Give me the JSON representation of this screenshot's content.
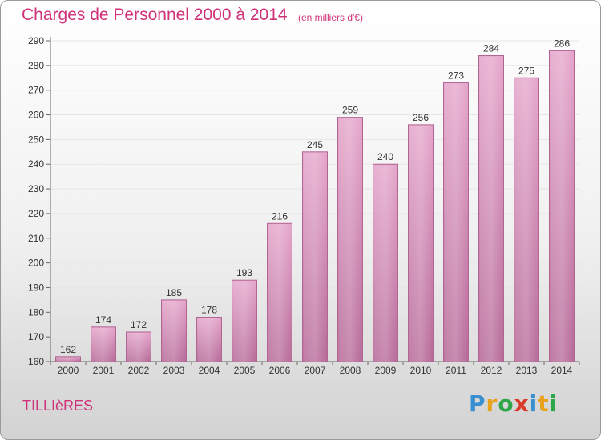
{
  "header": {
    "title": "Charges de Personnel 2000 à 2014",
    "subtitle": "(en milliers d'€)"
  },
  "footer": {
    "commune": "TILLIèRES",
    "logo": "Proxiti",
    "logo_colors": [
      "#3a8fd0",
      "#e8a21b",
      "#2ea64a",
      "#d93a2a",
      "#3a8fd0",
      "#e8a21b",
      "#2ea64a"
    ]
  },
  "chart_data": {
    "type": "bar",
    "title": "Charges de Personnel 2000 à 2014",
    "subtitle": "(en milliers d'€)",
    "categories": [
      "2000",
      "2001",
      "2002",
      "2003",
      "2004",
      "2005",
      "2006",
      "2007",
      "2008",
      "2009",
      "2010",
      "2011",
      "2012",
      "2013",
      "2014"
    ],
    "values": [
      162,
      174,
      172,
      185,
      178,
      193,
      216,
      245,
      259,
      240,
      256,
      273,
      284,
      275,
      286
    ],
    "ylim": [
      160,
      290
    ],
    "yticks": [
      160,
      170,
      180,
      190,
      200,
      210,
      220,
      230,
      240,
      250,
      260,
      270,
      280,
      290
    ],
    "grid": true,
    "bar_color": "#d77fb0",
    "xlabel": "",
    "ylabel": ""
  }
}
